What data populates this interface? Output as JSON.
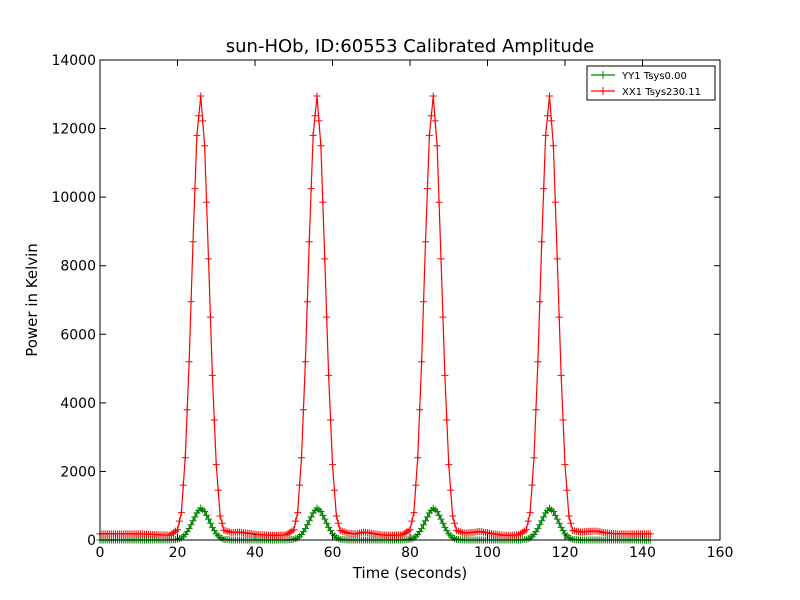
{
  "chart_data": {
    "type": "line",
    "title": "sun-HOb, ID:60553 Calibrated Amplitude",
    "xlabel": "Time (seconds)",
    "ylabel": "Power in Kelvin",
    "xlim": [
      0,
      160
    ],
    "ylim": [
      0,
      14000
    ],
    "x_ticks": [
      0,
      20,
      40,
      60,
      80,
      100,
      120,
      140,
      160
    ],
    "x_tick_labels": [
      "0",
      "20",
      "40",
      "60",
      "80",
      "100",
      "120",
      "140",
      "160"
    ],
    "y_ticks": [
      0,
      2000,
      4000,
      6000,
      8000,
      10000,
      12000,
      14000
    ],
    "y_tick_labels": [
      "0",
      "2000",
      "4000",
      "6000",
      "8000",
      "10000",
      "12000",
      "14000"
    ],
    "grid": false,
    "legend_position": "top-right",
    "marker": "+",
    "series": [
      {
        "name": "YY1 Tsys0.00",
        "color": "#008000",
        "x": [
          0,
          2,
          4,
          6,
          8,
          10,
          12,
          14,
          16,
          18,
          20,
          21,
          22,
          23,
          24,
          25,
          26,
          27,
          28,
          29,
          30,
          31,
          32,
          34,
          36,
          38,
          40,
          42,
          44,
          46,
          48,
          50,
          51,
          52,
          53,
          54,
          55,
          56,
          57,
          58,
          59,
          60,
          61,
          62,
          64,
          66,
          68,
          70,
          72,
          74,
          76,
          78,
          80,
          81,
          82,
          83,
          84,
          85,
          86,
          87,
          88,
          89,
          90,
          91,
          92,
          94,
          96,
          98,
          100,
          102,
          104,
          106,
          108,
          110,
          111,
          112,
          113,
          114,
          115,
          116,
          117,
          118,
          119,
          120,
          121,
          122,
          124,
          126,
          128,
          130,
          132,
          134,
          136,
          138,
          140,
          142
        ],
        "y": [
          0,
          0,
          0,
          0,
          0,
          0,
          0,
          0,
          0,
          0,
          20,
          60,
          160,
          330,
          560,
          790,
          930,
          830,
          610,
          370,
          180,
          70,
          20,
          0,
          0,
          0,
          0,
          0,
          0,
          0,
          0,
          20,
          60,
          160,
          330,
          560,
          790,
          930,
          830,
          610,
          370,
          180,
          70,
          20,
          0,
          0,
          0,
          0,
          0,
          0,
          0,
          0,
          20,
          60,
          160,
          330,
          560,
          790,
          930,
          830,
          610,
          370,
          180,
          70,
          20,
          0,
          0,
          0,
          0,
          0,
          0,
          0,
          0,
          20,
          60,
          160,
          330,
          560,
          790,
          930,
          830,
          610,
          370,
          180,
          70,
          20,
          0,
          0,
          0,
          0,
          0,
          0,
          0,
          0,
          0,
          0
        ]
      },
      {
        "name": "XX1 Tsys230.11",
        "color": "#ff0000",
        "x": [
          0,
          2,
          4,
          6,
          8,
          10,
          12,
          14,
          16,
          18,
          20,
          21,
          22,
          23,
          24,
          25,
          26,
          27,
          28,
          29,
          30,
          31,
          32,
          34,
          36,
          38,
          40,
          42,
          44,
          46,
          48,
          50,
          51,
          52,
          53,
          54,
          55,
          56,
          57,
          58,
          59,
          60,
          61,
          62,
          64,
          66,
          68,
          70,
          72,
          74,
          76,
          78,
          80,
          81,
          82,
          83,
          84,
          85,
          86,
          87,
          88,
          89,
          90,
          91,
          92,
          94,
          96,
          98,
          100,
          102,
          104,
          106,
          108,
          110,
          111,
          112,
          113,
          114,
          115,
          116,
          117,
          118,
          119,
          120,
          121,
          122,
          124,
          126,
          128,
          130,
          132,
          134,
          136,
          138,
          140,
          142
        ],
        "y": [
          180,
          180,
          180,
          180,
          180,
          180,
          170,
          160,
          150,
          140,
          300,
          800,
          2400,
          5200,
          8700,
          11800,
          12950,
          11500,
          8200,
          4800,
          2200,
          700,
          280,
          220,
          230,
          200,
          170,
          150,
          140,
          140,
          150,
          300,
          800,
          2400,
          5200,
          8700,
          11800,
          12950,
          11500,
          8200,
          4800,
          2200,
          700,
          280,
          200,
          180,
          230,
          200,
          160,
          140,
          140,
          150,
          300,
          800,
          2400,
          5200,
          8700,
          11800,
          12950,
          11500,
          8200,
          4800,
          2200,
          700,
          280,
          200,
          220,
          250,
          210,
          170,
          140,
          140,
          150,
          300,
          800,
          2400,
          5200,
          8700,
          11800,
          12950,
          11500,
          8200,
          4800,
          2200,
          700,
          280,
          230,
          250,
          260,
          220,
          190,
          180,
          180,
          180,
          180,
          180
        ]
      }
    ]
  }
}
